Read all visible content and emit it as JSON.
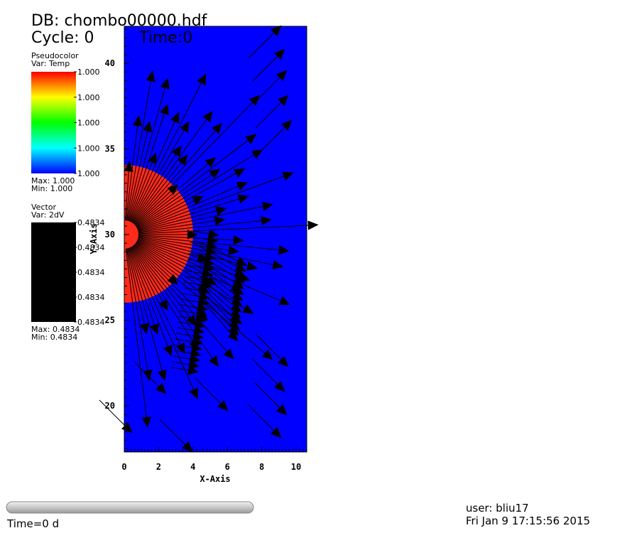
{
  "header": {
    "db": "DB: chombo00000.hdf",
    "cycle": "Cycle: 0",
    "time": "Time:0"
  },
  "legend_pseudocolor": {
    "title": "Pseudocolor",
    "var": "Var: Temp",
    "ticks": [
      "1.000",
      "1.000",
      "1.000",
      "1.000",
      "1.000"
    ],
    "max": "Max:  1.000",
    "min": "Min:  1.000"
  },
  "legend_vector": {
    "title": "Vector",
    "var": "Var: 2dV",
    "ticks": [
      "0.4834",
      "0.4834",
      "0.4834",
      "0.4834",
      "0.4834"
    ],
    "max": "Max: 0.4834",
    "min": "Min: 0.4834"
  },
  "plot": {
    "x_axis_title": "X-Axis",
    "y_axis_title": "Y-Axis",
    "x_ticks": [
      "0",
      "2",
      "4",
      "6",
      "8",
      "10"
    ],
    "y_ticks": [
      "40",
      "35",
      "30",
      "25",
      "20"
    ]
  },
  "footer": {
    "time": "Time=0 d",
    "user": "user: bliu17",
    "date": "Fri Jan  9 17:15:56 2015"
  }
}
